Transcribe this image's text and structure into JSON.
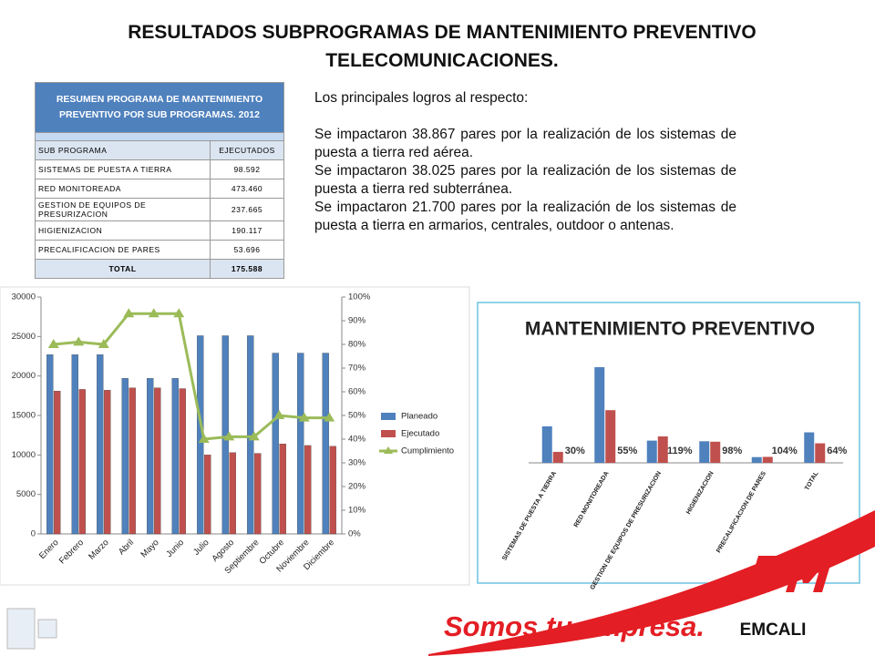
{
  "title": [
    "RESULTADOS SUBPROGRAMAS DE MANTENIMIENTO PREVENTIVO",
    "TELECOMUNICACIONES."
  ],
  "table": {
    "title": "RESUMEN PROGRAMA DE MANTENIMIENTO PREVENTIVO POR SUB PROGRAMAS. 2012",
    "columns": [
      "SUB PROGRAMA",
      "EJECUTADOS"
    ],
    "rows": [
      [
        "SISTEMAS DE PUESTA A TIERRA",
        "98.592"
      ],
      [
        "RED MONITOREADA",
        "473.460"
      ],
      [
        "GESTION DE EQUIPOS DE PRESURIZACION",
        "237.665"
      ],
      [
        "HIGIENIZACION",
        "190.117"
      ],
      [
        "PRECALIFICACION DE PARES",
        "53.696"
      ],
      [
        "TOTAL",
        "175.588"
      ]
    ]
  },
  "text": {
    "intro": "Los principales logros al respecto:",
    "paragraphs": [
      "Se impactaron 38.867 pares por la realización de los sistemas de puesta a tierra red aérea.",
      "Se impactaron 38.025 pares por la realización de los sistemas de puesta a tierra red subterránea.",
      "Se impactaron 21.700 pares por la realización de los sistemas de puesta a tierra en armarios, centrales, outdoor o antenas."
    ]
  },
  "chart_data": [
    {
      "type": "bar",
      "categories": [
        "Enero",
        "Febrero",
        "Marzo",
        "Abril",
        "Mayo",
        "Junio",
        "Julio",
        "Agosto",
        "Septiembre",
        "Octubre",
        "Noviembre",
        "Diciembre"
      ],
      "series": [
        {
          "name": "Planeado",
          "color": "#4f81bd",
          "values": [
            22700,
            22700,
            22700,
            19700,
            19700,
            19700,
            25100,
            25100,
            25100,
            22900,
            22900,
            22900
          ]
        },
        {
          "name": "Ejecutado",
          "color": "#c0504d",
          "values": [
            18100,
            18300,
            18200,
            18500,
            18500,
            18400,
            10000,
            10300,
            10200,
            11400,
            11200,
            11100
          ]
        },
        {
          "name": "Cumplimiento",
          "color": "#9bbb59",
          "type": "line",
          "axis": "y2",
          "values": [
            80,
            81,
            80,
            93,
            93,
            93,
            40,
            41,
            41,
            50,
            49,
            49
          ]
        }
      ],
      "ylim": [
        0,
        30000
      ],
      "yticks": [
        0,
        5000,
        10000,
        15000,
        20000,
        25000,
        30000
      ],
      "y2lim": [
        0,
        100
      ],
      "y2ticks": [
        {
          "value": 0,
          "label": "0%"
        },
        {
          "value": 10,
          "label": "10%"
        },
        {
          "value": 20,
          "label": "20%"
        },
        {
          "value": 30,
          "label": "30%"
        },
        {
          "value": 40,
          "label": "40%"
        },
        {
          "value": 50,
          "label": "50%"
        },
        {
          "value": 60,
          "label": "60%"
        },
        {
          "value": 70,
          "label": "70%"
        },
        {
          "value": 80,
          "label": "80%"
        },
        {
          "value": 90,
          "label": "90%"
        },
        {
          "value": 100,
          "label": "100%"
        }
      ],
      "legend": "right"
    },
    {
      "type": "bar",
      "title": "MANTENIMIENTO PREVENTIVO",
      "categories": [
        "SISTEMAS DE PUESTA A TIERRA",
        "RED MONITOREADA",
        "GESTION DE EQUIPOS DE PRESURIZACION",
        "HIGIENIZACION",
        "PRECALIFICACION DE PARES",
        "TOTAL"
      ],
      "series": [
        {
          "color": "#4f81bd",
          "values": [
            328000,
            860000,
            199700,
            194000,
            51600,
            274000
          ]
        },
        {
          "color": "#c0504d",
          "values": [
            98592,
            473460,
            237665,
            190117,
            53696,
            175588
          ]
        }
      ],
      "annotations": [
        "30%",
        "55%",
        "119%",
        "98%",
        "104%",
        "64%"
      ]
    }
  ],
  "footer": {
    "slogan": "Somos tu empresa.",
    "brand": "EMCALI"
  }
}
